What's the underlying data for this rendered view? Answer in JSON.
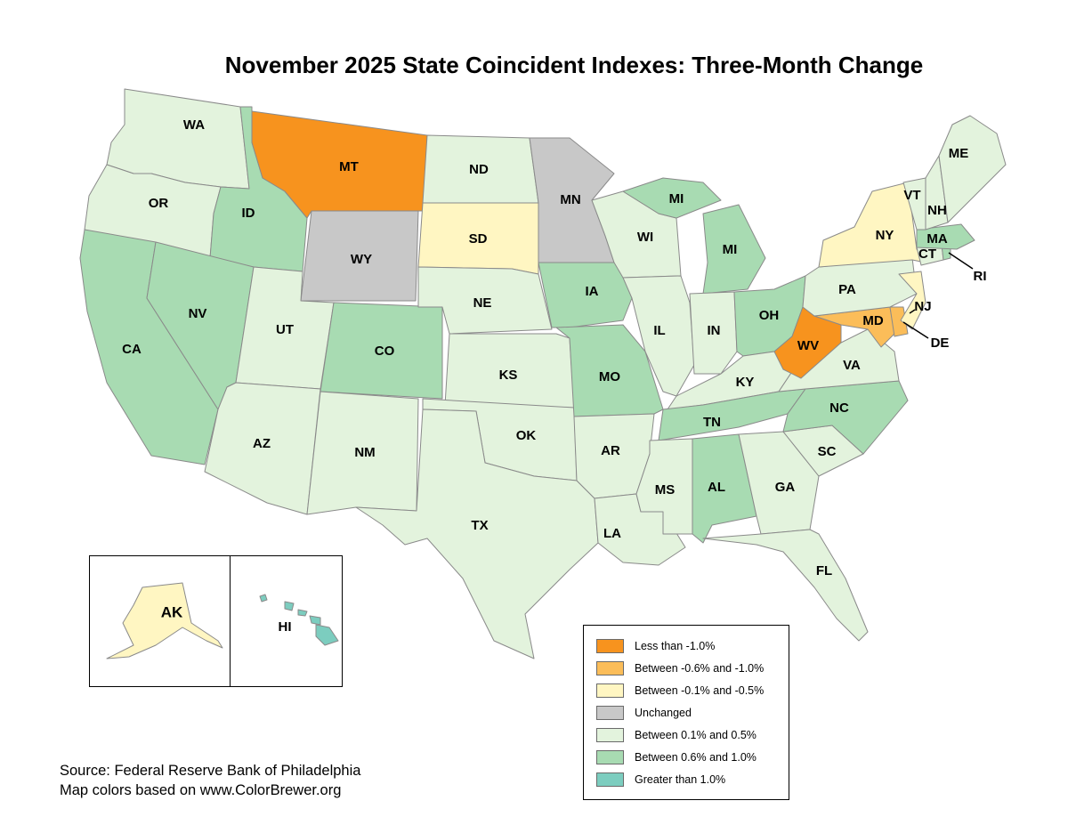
{
  "title": "November 2025 State Coincident Indexes: Three-Month Change",
  "colors": {
    "less_than_neg_1_0": "#f7931e",
    "between_neg_0_6_and_neg_1_0": "#fbbd59",
    "between_neg_0_1_and_neg_0_5": "#fff6c2",
    "unchanged": "#c8c8c8",
    "between_0_1_and_0_5": "#e3f3dd",
    "between_0_6_and_1_0": "#a8dbb2",
    "greater_than_1_0": "#7ccdbf"
  },
  "legend": {
    "items": [
      {
        "label": "Less than -1.0%",
        "category": "less_than_neg_1_0"
      },
      {
        "label": "Between -0.6% and -1.0%",
        "category": "between_neg_0_6_and_neg_1_0"
      },
      {
        "label": "Between -0.1% and -0.5%",
        "category": "between_neg_0_1_and_neg_0_5"
      },
      {
        "label": "Unchanged",
        "category": "unchanged"
      },
      {
        "label": "Between 0.1% and 0.5%",
        "category": "between_0_1_and_0_5"
      },
      {
        "label": "Between 0.6% and 1.0%",
        "category": "between_0_6_and_1_0"
      },
      {
        "label": "Greater than 1.0%",
        "category": "greater_than_1_0"
      }
    ]
  },
  "states": {
    "WA": "between_0_1_and_0_5",
    "OR": "between_0_1_and_0_5",
    "CA": "between_0_6_and_1_0",
    "ID": "between_0_6_and_1_0",
    "NV": "between_0_6_and_1_0",
    "MT": "less_than_neg_1_0",
    "WY": "unchanged",
    "UT": "between_0_1_and_0_5",
    "AZ": "between_0_1_and_0_5",
    "CO": "between_0_6_and_1_0",
    "NM": "between_0_1_and_0_5",
    "ND": "between_0_1_and_0_5",
    "SD": "between_neg_0_1_and_neg_0_5",
    "NE": "between_0_1_and_0_5",
    "KS": "between_0_1_and_0_5",
    "OK": "between_0_1_and_0_5",
    "TX": "between_0_1_and_0_5",
    "MN": "unchanged",
    "IA": "between_0_6_and_1_0",
    "MO": "between_0_6_and_1_0",
    "AR": "between_0_1_and_0_5",
    "LA": "between_0_1_and_0_5",
    "WI": "between_0_1_and_0_5",
    "IL": "between_0_1_and_0_5",
    "MI": "between_0_6_and_1_0",
    "IN": "between_0_1_and_0_5",
    "OH": "between_0_6_and_1_0",
    "KY": "between_0_1_and_0_5",
    "TN": "between_0_6_and_1_0",
    "MS": "between_0_1_and_0_5",
    "AL": "between_0_6_and_1_0",
    "GA": "between_0_1_and_0_5",
    "FL": "between_0_1_and_0_5",
    "SC": "between_0_1_and_0_5",
    "NC": "between_0_6_and_1_0",
    "VA": "between_0_1_and_0_5",
    "WV": "less_than_neg_1_0",
    "MD": "between_neg_0_6_and_neg_1_0",
    "DE": "between_neg_0_6_and_neg_1_0",
    "PA": "between_0_1_and_0_5",
    "NJ": "between_neg_0_1_and_neg_0_5",
    "NY": "between_neg_0_1_and_neg_0_5",
    "CT": "between_0_1_and_0_5",
    "RI": "between_0_6_and_1_0",
    "MA": "between_0_6_and_1_0",
    "VT": "between_0_1_and_0_5",
    "NH": "between_0_1_and_0_5",
    "ME": "between_0_1_and_0_5",
    "AK": "between_neg_0_1_and_neg_0_5",
    "HI": "greater_than_1_0"
  },
  "labels": {
    "WA": "WA",
    "OR": "OR",
    "CA": "CA",
    "ID": "ID",
    "NV": "NV",
    "MT": "MT",
    "WY": "WY",
    "UT": "UT",
    "AZ": "AZ",
    "CO": "CO",
    "NM": "NM",
    "ND": "ND",
    "SD": "SD",
    "NE": "NE",
    "KS": "KS",
    "OK": "OK",
    "TX": "TX",
    "MN": "MN",
    "IA": "IA",
    "MO": "MO",
    "AR": "AR",
    "LA": "LA",
    "WI": "WI",
    "IL": "IL",
    "MI_UP": "MI",
    "MI": "MI",
    "IN": "IN",
    "OH": "OH",
    "KY": "KY",
    "TN": "TN",
    "MS": "MS",
    "AL": "AL",
    "GA": "GA",
    "FL": "FL",
    "SC": "SC",
    "NC": "NC",
    "VA": "VA",
    "WV": "WV",
    "MD": "MD",
    "DE": "DE",
    "PA": "PA",
    "NJ": "NJ",
    "NY": "NY",
    "CT": "CT",
    "RI": "RI",
    "MA": "MA",
    "VT": "VT",
    "NH": "NH",
    "ME": "ME",
    "AK": "AK",
    "HI": "HI"
  },
  "source": {
    "line1": "Source: Federal Reserve Bank of Philadelphia",
    "line2": "Map colors based on www.ColorBrewer.org"
  }
}
